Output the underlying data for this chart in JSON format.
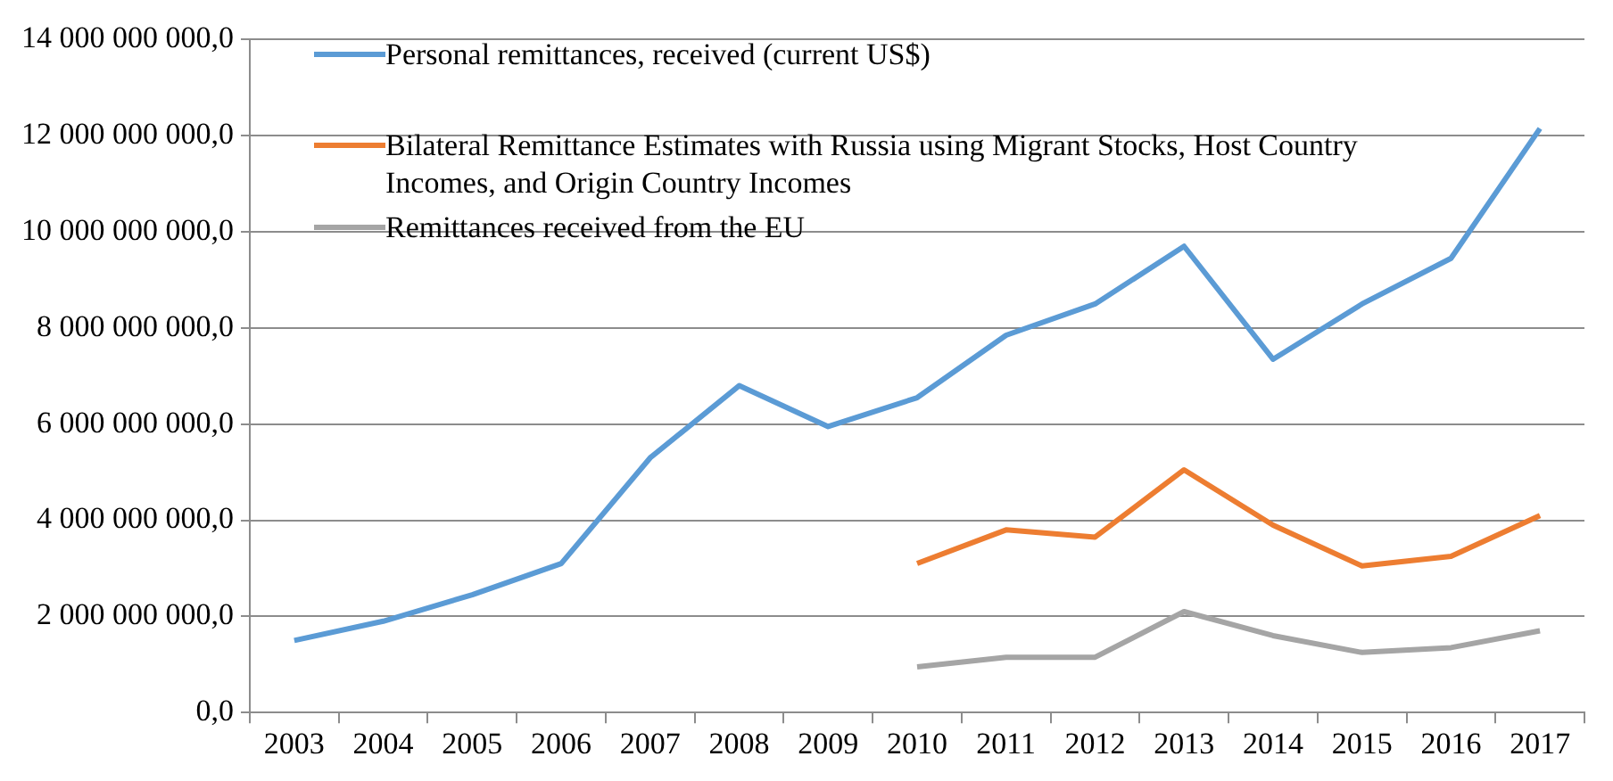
{
  "chart_data": {
    "type": "line",
    "categories": [
      "2003",
      "2004",
      "2005",
      "2006",
      "2007",
      "2008",
      "2009",
      "2010",
      "2011",
      "2012",
      "2013",
      "2014",
      "2015",
      "2016",
      "2017"
    ],
    "series": [
      {
        "name": "Personal remittances, received (current US$)",
        "color": "#5b9bd5",
        "values": [
          1500000000,
          1900000000,
          2450000000,
          3100000000,
          5300000000,
          6800000000,
          5950000000,
          6550000000,
          7850000000,
          8500000000,
          9700000000,
          7350000000,
          8500000000,
          9450000000,
          12150000000
        ]
      },
      {
        "name": "Bilateral Remittance Estimates with Russia using Migrant Stocks, Host Country Incomes, and Origin Country Incomes",
        "color": "#ed7d31",
        "values": [
          null,
          null,
          null,
          null,
          null,
          null,
          null,
          3100000000,
          3800000000,
          3650000000,
          5050000000,
          3900000000,
          3050000000,
          3250000000,
          4100000000
        ]
      },
      {
        "name": "Remittances received from the EU",
        "color": "#a5a5a5",
        "values": [
          null,
          null,
          null,
          null,
          null,
          null,
          null,
          950000000,
          1150000000,
          1150000000,
          2100000000,
          1600000000,
          1250000000,
          1350000000,
          1700000000
        ]
      }
    ],
    "ylim": [
      0,
      14000000000
    ],
    "yticks": [
      {
        "value": 0,
        "label": "0,0"
      },
      {
        "value": 2000000000,
        "label": "2 000 000 000,0"
      },
      {
        "value": 4000000000,
        "label": "4 000 000 000,0"
      },
      {
        "value": 6000000000,
        "label": "6 000 000 000,0"
      },
      {
        "value": 8000000000,
        "label": "8 000 000 000,0"
      },
      {
        "value": 10000000000,
        "label": "10 000 000 000,0"
      },
      {
        "value": 12000000000,
        "label": "12 000 000 000,0"
      },
      {
        "value": 14000000000,
        "label": "14 000 000 000,0"
      }
    ],
    "grid": "y",
    "legend": "top left",
    "marker": "none",
    "line_style": "solid"
  }
}
